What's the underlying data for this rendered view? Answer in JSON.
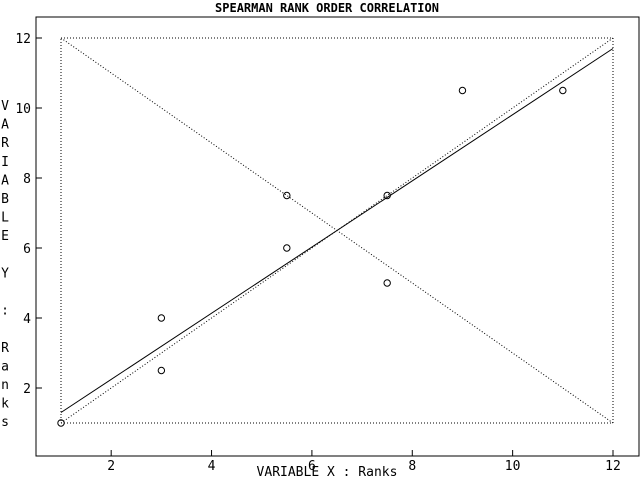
{
  "chart_data": {
    "type": "scatter",
    "title": "SPEARMAN RANK ORDER CORRELATION",
    "xlabel": "VARIABLE X : Ranks",
    "ylabel": "VARIABLE Y : Ranks",
    "xlim": [
      0.5,
      12.5
    ],
    "ylim": [
      0.5,
      12.5
    ],
    "xticks": [
      2,
      4,
      6,
      8,
      10,
      12
    ],
    "yticks": [
      2,
      4,
      6,
      8,
      10,
      12
    ],
    "grid": false,
    "points": [
      {
        "x": 1,
        "y": 1
      },
      {
        "x": 3,
        "y": 2.5
      },
      {
        "x": 3,
        "y": 4
      },
      {
        "x": 5.5,
        "y": 6
      },
      {
        "x": 5.5,
        "y": 7.5
      },
      {
        "x": 7.5,
        "y": 5
      },
      {
        "x": 7.5,
        "y": 7.5
      },
      {
        "x": 9,
        "y": 10.5
      },
      {
        "x": 11,
        "y": 10.5
      }
    ],
    "regression_line": {
      "x": [
        1,
        12
      ],
      "y": [
        1.3,
        11.7
      ]
    },
    "reference_box": {
      "x": [
        1,
        12
      ],
      "y": [
        1,
        12
      ]
    },
    "reference_lines": [
      {
        "x": [
          1,
          12
        ],
        "y": [
          1,
          12
        ]
      },
      {
        "x": [
          1,
          12
        ],
        "y": [
          12,
          1
        ]
      }
    ],
    "colors": {
      "foreground": "#000000",
      "background": "#ffffff"
    }
  }
}
